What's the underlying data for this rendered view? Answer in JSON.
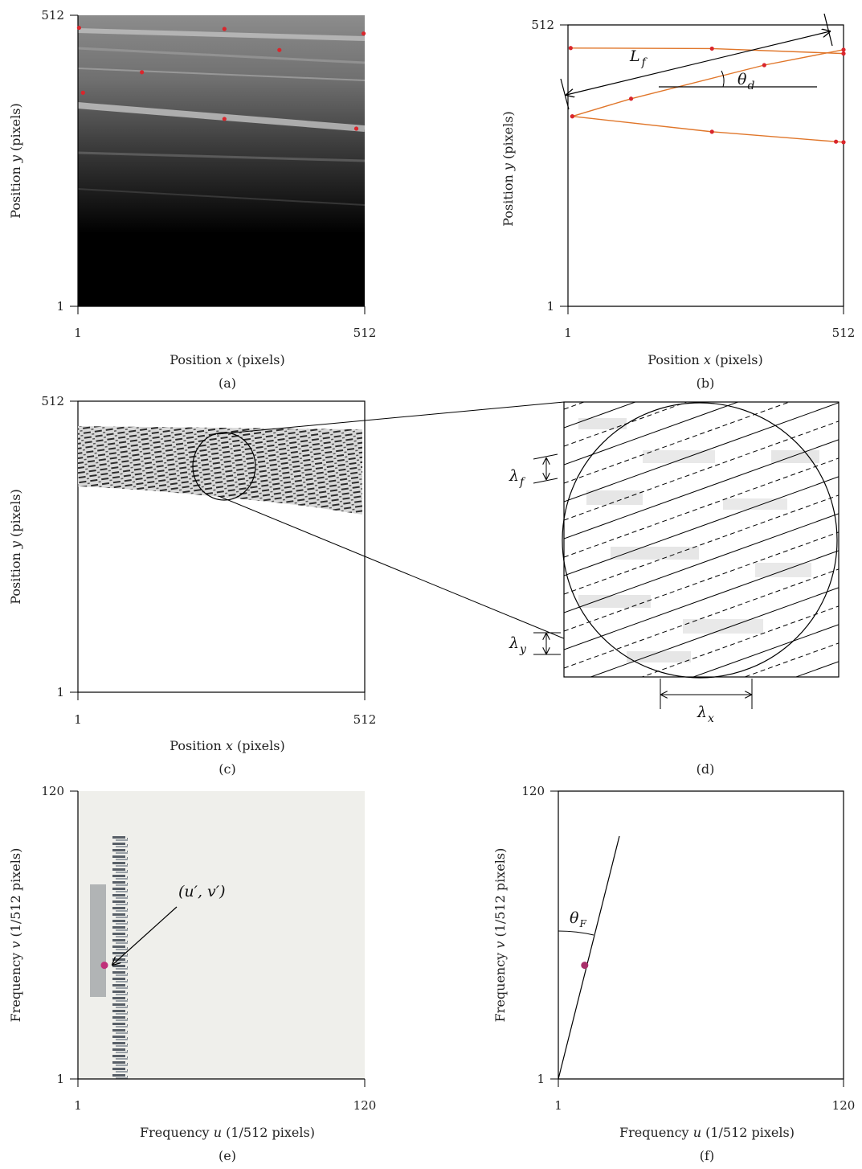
{
  "panels": {
    "a": {
      "caption": "(a)",
      "x_axis_label": "Position",
      "x_axis_var": "x",
      "x_axis_unit": "(pixels)",
      "y_axis_label": "Position",
      "y_axis_var": "y",
      "y_axis_unit": "(pixels)",
      "x_ticks": [
        "1",
        "512"
      ],
      "y_ticks": [
        "1",
        "512"
      ]
    },
    "b": {
      "caption": "(b)",
      "x_axis_label": "Position",
      "x_axis_var": "x",
      "x_axis_unit": "(pixels)",
      "y_axis_label": "Position",
      "y_axis_var": "y",
      "y_axis_unit": "(pixels)",
      "x_ticks": [
        "1",
        "512"
      ],
      "y_ticks": [
        "1",
        "512"
      ],
      "symbols": {
        "length": "L",
        "length_sub": "f",
        "angle": "θ",
        "angle_sub": "d"
      },
      "line_color": "#e0762a",
      "marker_color": "#d9262c"
    },
    "c": {
      "caption": "(c)",
      "x_axis_label": "Position",
      "x_axis_var": "x",
      "x_axis_unit": "(pixels)",
      "y_axis_label": "Position",
      "y_axis_var": "y",
      "y_axis_unit": "(pixels)",
      "x_ticks": [
        "1",
        "512"
      ],
      "y_ticks": [
        "1",
        "512"
      ]
    },
    "d": {
      "caption": "(d)",
      "symbols": {
        "lf": "λ",
        "lf_sub": "f",
        "ly": "λ",
        "ly_sub": "y",
        "lx": "λ",
        "lx_sub": "x"
      }
    },
    "e": {
      "caption": "(e)",
      "x_axis_label": "Frequency",
      "x_axis_var": "u",
      "x_axis_unit": "(1/512 pixels)",
      "y_axis_label": "Frequency",
      "y_axis_var": "v",
      "y_axis_unit": "(1/512 pixels)",
      "x_ticks": [
        "1",
        "120"
      ],
      "y_ticks": [
        "1",
        "120"
      ],
      "peak_label": "(u′, v′)",
      "marker_color": "#c0307a"
    },
    "f": {
      "caption": "(f)",
      "x_axis_label": "Frequency",
      "x_axis_var": "u",
      "x_axis_unit": "(1/512 pixels)",
      "y_axis_label": "Frequency",
      "y_axis_var": "v",
      "y_axis_unit": "(1/512 pixels)",
      "x_ticks": [
        "1",
        "120"
      ],
      "y_ticks": [
        "1",
        "120"
      ],
      "symbols": {
        "angle": "θ",
        "angle_sub": "F"
      },
      "marker_color": "#a8306a"
    }
  },
  "chart_data": [
    {
      "type": "scatter",
      "panel": "a",
      "xlim": [
        1,
        512
      ],
      "ylim": [
        1,
        512
      ],
      "series": [
        {
          "values": [
            [
              3,
              490
            ],
            [
              262,
              488
            ],
            [
              510,
              480
            ],
            [
              360,
              451
            ],
            [
              115,
              412
            ],
            [
              10,
              376
            ],
            [
              262,
              330
            ],
            [
              497,
              313
            ]
          ]
        }
      ]
    },
    {
      "type": "line",
      "panel": "b",
      "xlim": [
        1,
        512
      ],
      "ylim": [
        1,
        512
      ],
      "series": [
        {
          "values": [
            [
              6,
              470
            ],
            [
              268,
              469
            ],
            [
              512,
              460
            ]
          ]
        },
        {
          "values": [
            [
              9,
              346
            ],
            [
              118,
              378
            ],
            [
              365,
              439
            ],
            [
              512,
              467
            ]
          ]
        },
        {
          "values": [
            [
              9,
              346
            ],
            [
              268,
              318
            ],
            [
              498,
              300
            ],
            [
              512,
              299
            ]
          ]
        }
      ]
    },
    {
      "type": "scatter",
      "panel": "e",
      "xlim": [
        1,
        120
      ],
      "ylim": [
        1,
        120
      ],
      "series": [
        {
          "values": [
            [
              12,
              48
            ]
          ]
        }
      ]
    },
    {
      "type": "scatter",
      "panel": "f",
      "xlim": [
        1,
        120
      ],
      "ylim": [
        1,
        120
      ],
      "series": [
        {
          "values": [
            [
              12,
              48
            ]
          ]
        }
      ]
    }
  ]
}
